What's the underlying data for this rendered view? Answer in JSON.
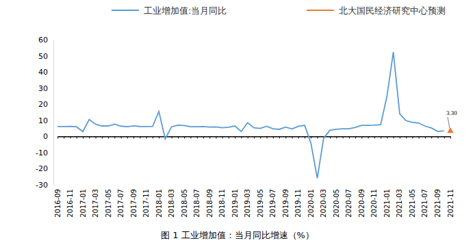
{
  "chart_data": {
    "type": "line",
    "title": "图 1 工业增加值：当月同比增速（%）",
    "categories": [
      "2016-09",
      null,
      "2016-11",
      null,
      "2017-01",
      null,
      "2017-03",
      null,
      "2017-05",
      null,
      "2017-07",
      null,
      "2017-09",
      null,
      "2017-11",
      null,
      "2018-01",
      null,
      "2018-03",
      null,
      "2018-05",
      null,
      "2018-07",
      null,
      "2018-09",
      null,
      "2018-11",
      null,
      "2019-01",
      null,
      "2019-03",
      null,
      "2019-05",
      null,
      "2019-07",
      null,
      "2019-09",
      null,
      "2019-11",
      null,
      "2020-01",
      null,
      "2020-03",
      null,
      "2020-05",
      null,
      "2020-07",
      null,
      "2020-09",
      null,
      "2020-11",
      null,
      "2021-01",
      null,
      "2021-03",
      null,
      "2021-05",
      null,
      "2021-07",
      null,
      "2021-09",
      null,
      "2021-11"
    ],
    "series": [
      {
        "name": "工业增加值:当月同比",
        "color": "#5b9bd5",
        "line_style": "solid",
        "values": [
          6.1,
          6.1,
          6.2,
          6.0,
          3.0,
          10.5,
          7.6,
          6.5,
          6.5,
          7.6,
          6.4,
          6.0,
          6.6,
          6.2,
          6.1,
          6.2,
          15.5,
          -1.5,
          6.0,
          7.0,
          6.8,
          6.0,
          6.0,
          6.1,
          5.8,
          5.9,
          5.4,
          5.7,
          6.5,
          3.0,
          8.5,
          5.4,
          5.0,
          6.3,
          4.8,
          4.4,
          5.8,
          4.7,
          6.2,
          6.9,
          -4.3,
          -25.9,
          -1.1,
          3.9,
          4.4,
          4.8,
          4.8,
          5.6,
          6.9,
          6.9,
          7.0,
          7.3,
          25.0,
          52.3,
          14.1,
          9.8,
          8.8,
          8.3,
          6.4,
          5.3,
          3.1,
          3.5,
          null
        ]
      },
      {
        "name": "北大国民经济研究中心预测",
        "color": "#ed7d31",
        "marker": "triangle",
        "data_labels": true,
        "values": [
          null,
          null,
          null,
          null,
          null,
          null,
          null,
          null,
          null,
          null,
          null,
          null,
          null,
          null,
          null,
          null,
          null,
          null,
          null,
          null,
          null,
          null,
          null,
          null,
          null,
          null,
          null,
          null,
          null,
          null,
          null,
          null,
          null,
          null,
          null,
          null,
          null,
          null,
          null,
          null,
          null,
          null,
          null,
          null,
          null,
          null,
          null,
          null,
          null,
          null,
          null,
          null,
          null,
          null,
          null,
          null,
          null,
          null,
          null,
          null,
          null,
          null,
          3.3
        ],
        "value_labels": [
          null,
          null,
          null,
          null,
          null,
          null,
          null,
          null,
          null,
          null,
          null,
          null,
          null,
          null,
          null,
          null,
          null,
          null,
          null,
          null,
          null,
          null,
          null,
          null,
          null,
          null,
          null,
          null,
          null,
          null,
          null,
          null,
          null,
          null,
          null,
          null,
          null,
          null,
          null,
          null,
          null,
          null,
          null,
          null,
          null,
          null,
          null,
          null,
          null,
          null,
          null,
          null,
          null,
          null,
          null,
          null,
          null,
          null,
          null,
          null,
          null,
          null,
          "3.30"
        ]
      }
    ],
    "ylim": [
      -30,
      60
    ],
    "yticks": [
      -30,
      -20,
      -10,
      0,
      10,
      20,
      30,
      40,
      50,
      60
    ],
    "grid": false,
    "legend": "top"
  }
}
